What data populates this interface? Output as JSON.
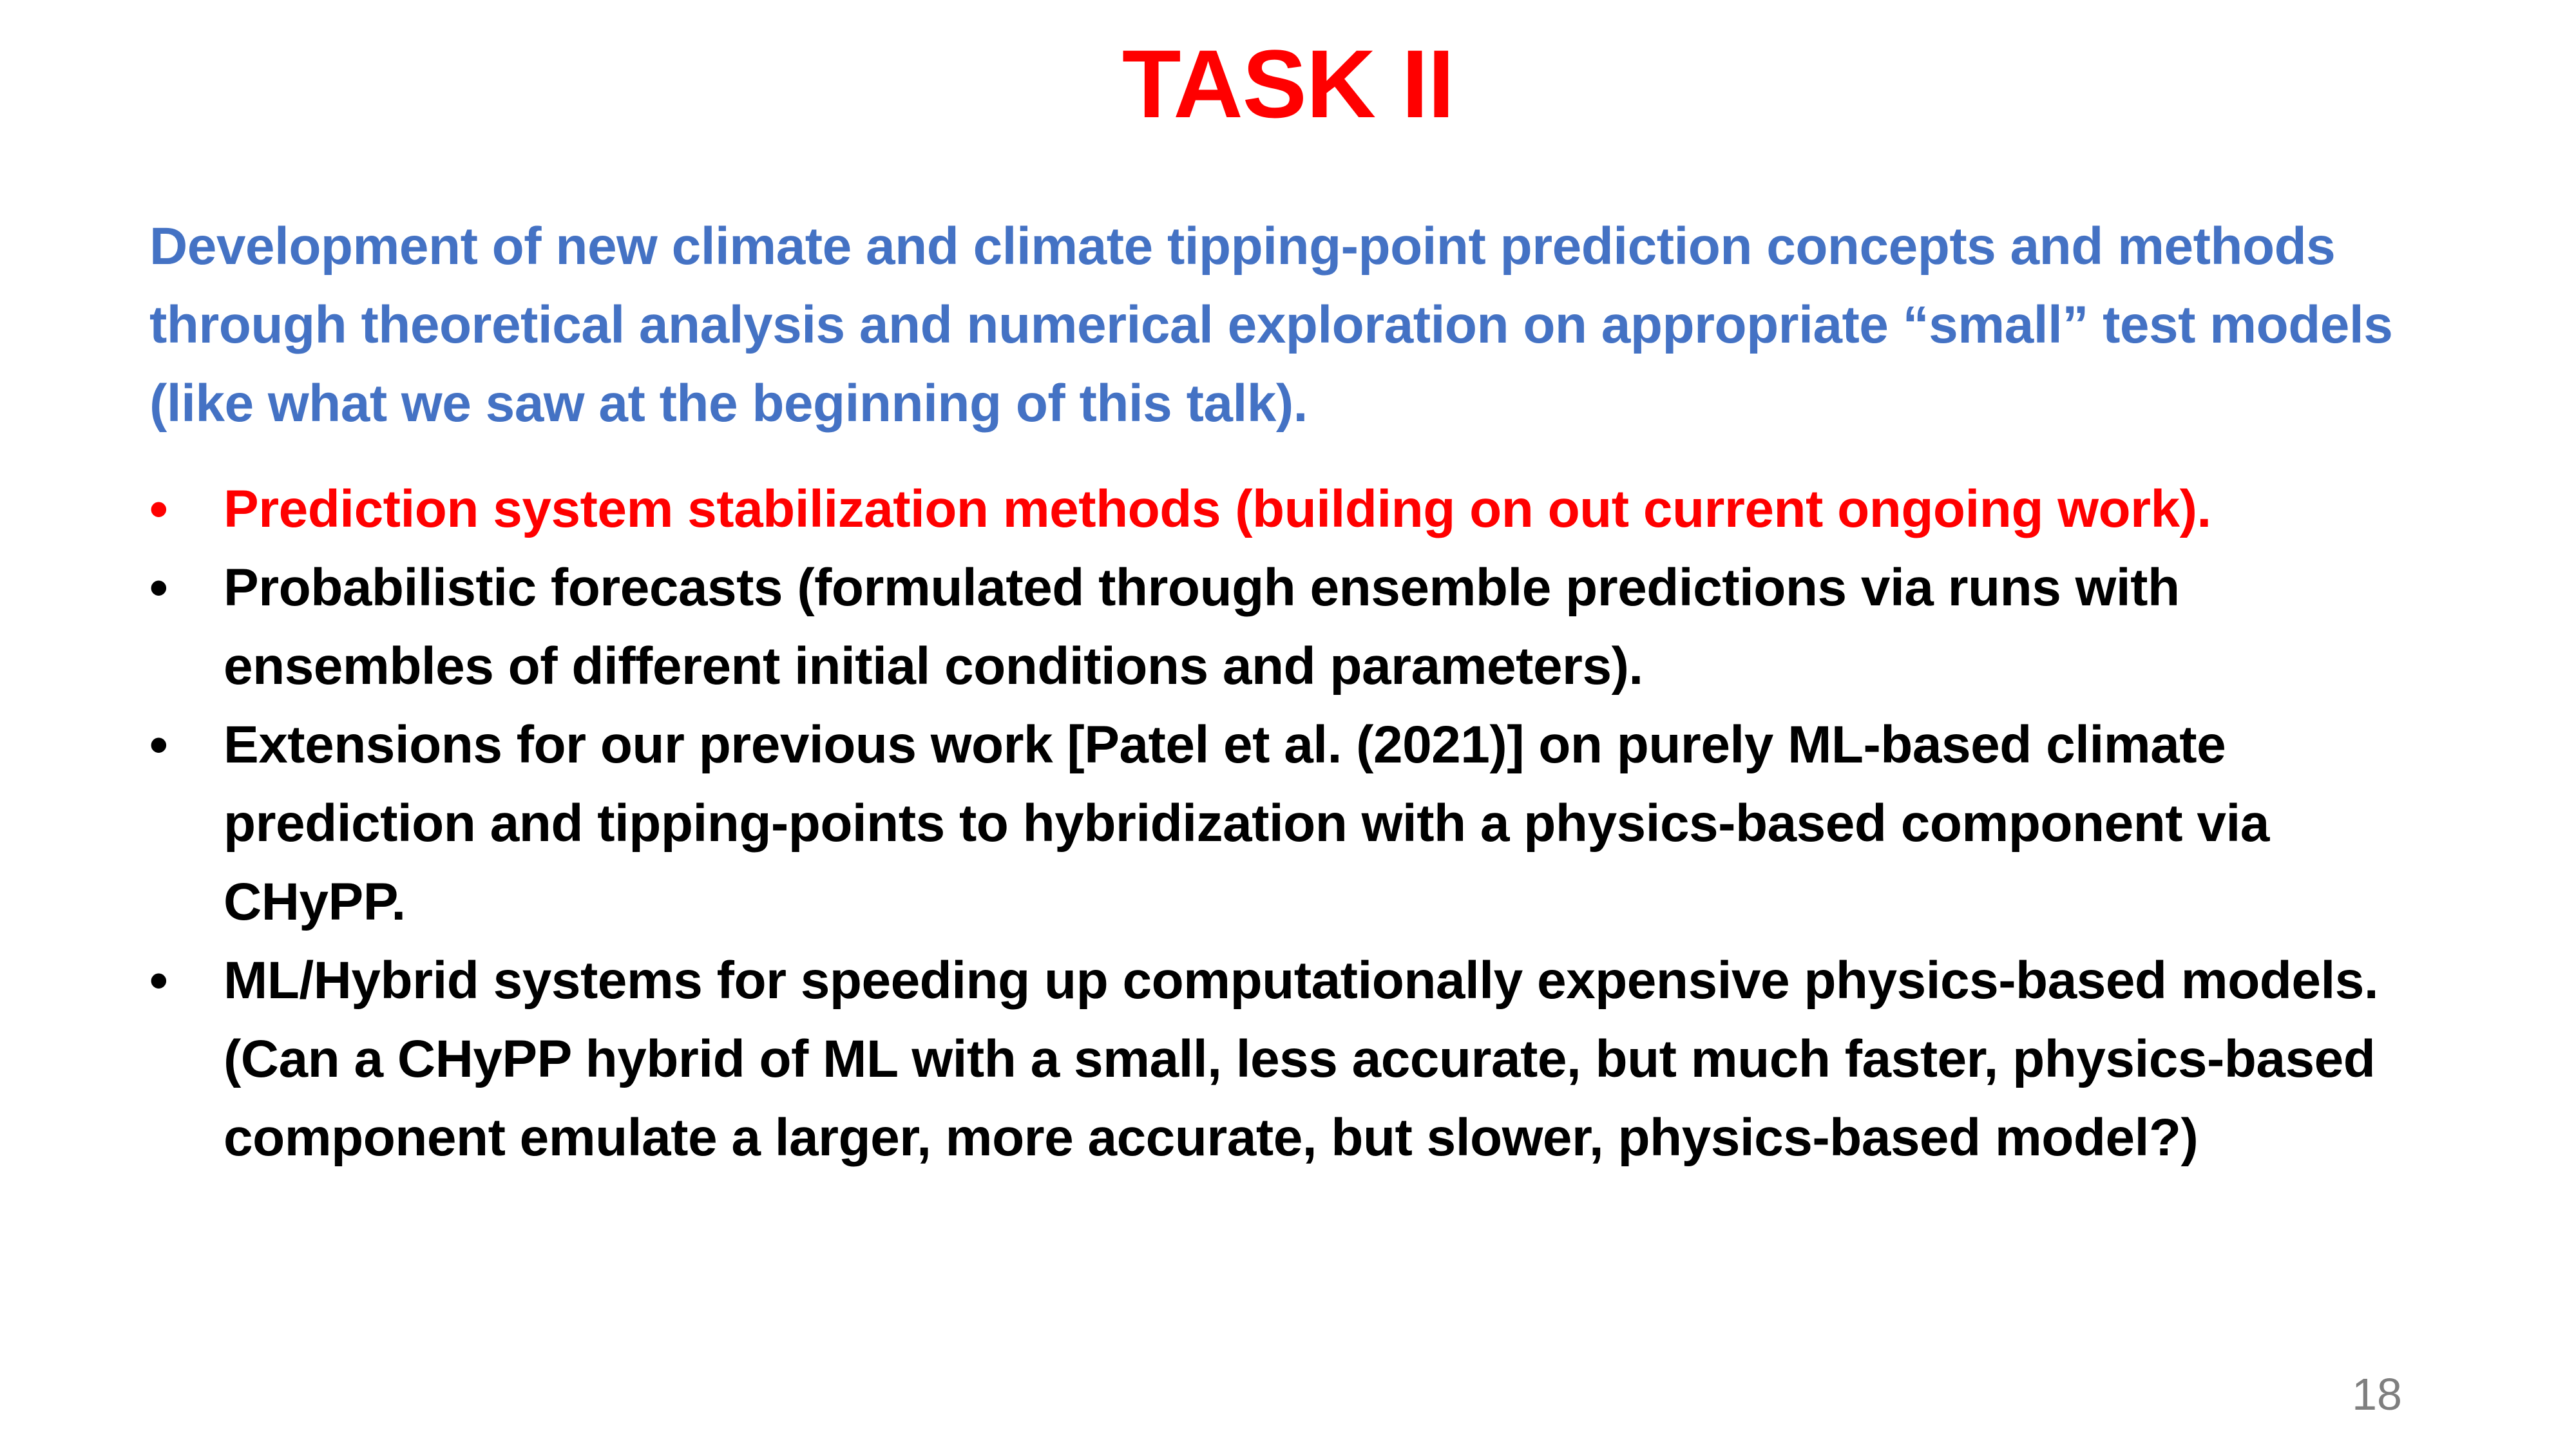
{
  "slide": {
    "title": "TASK II",
    "intro": "Development of new climate and climate tipping-point prediction concepts and methods through theoretical analysis and numerical exploration on appropriate “small” test models (like what we saw at the beginning of this talk).",
    "bullets": [
      {
        "symbol": "•",
        "text": "Prediction system stabilization methods (building on out current ongoing work).",
        "color": "#ff0000"
      },
      {
        "symbol": "•",
        "text": "Probabilistic forecasts (formulated through ensemble predictions via runs with ensembles of different initial conditions and parameters).",
        "color": "#000000"
      },
      {
        "symbol": "•",
        "text": "Extensions for our previous work [Patel et al. (2021)] on purely ML-based climate prediction and tipping-points to hybridization with a physics-based component via CHyPP.",
        "color": "#000000"
      },
      {
        "symbol": "•",
        "text": "ML/Hybrid systems for speeding up computationally expensive physics-based models. (Can a CHyPP hybrid of ML with a small, less accurate, but much faster, physics-based component emulate a larger, more accurate, but slower, physics-based model?)",
        "color": "#000000"
      }
    ],
    "page_number": "18",
    "colors": {
      "title": "#ff0000",
      "intro": "#4472c4",
      "body": "#000000",
      "page_number": "#7f7f7f"
    }
  }
}
